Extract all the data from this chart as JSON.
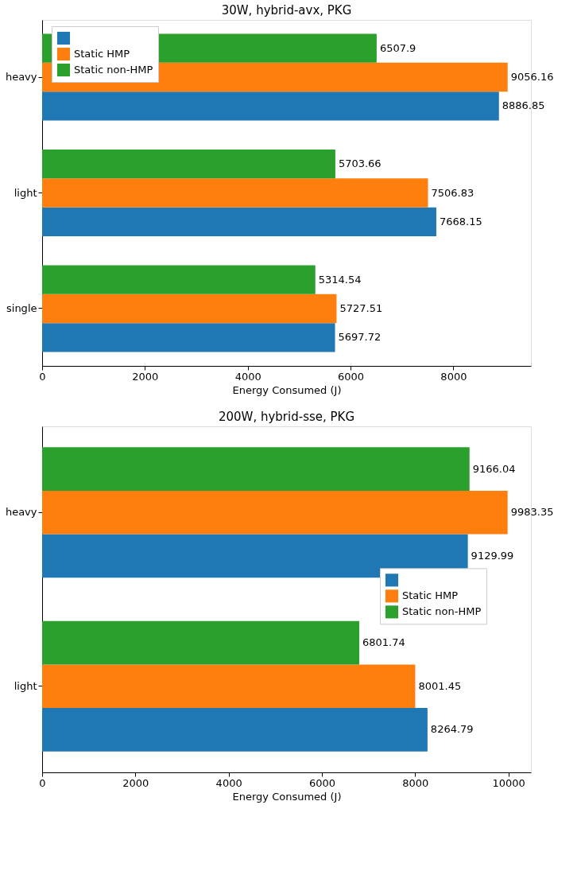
{
  "chart_data": [
    {
      "type": "bar",
      "orientation": "horizontal",
      "title": "30W, hybrid-avx, PKG",
      "xlabel": "Energy Consumed (J)",
      "categories": [
        "heavy",
        "light",
        "single"
      ],
      "series": [
        {
          "color": "#1f77b4",
          "values": [
            8886.85,
            7668.15,
            5697.72
          ]
        },
        {
          "name": "Static HMP",
          "color": "#ff7f0e",
          "values": [
            9056.16,
            7506.83,
            5727.51
          ]
        },
        {
          "name": "Static non-HMP",
          "color": "#2ca02c",
          "values": [
            6507.9,
            5703.66,
            5314.54
          ]
        }
      ],
      "xlim": [
        0,
        9509
      ],
      "xticks": [
        0,
        2000,
        4000,
        6000,
        8000
      ],
      "data_labels": true,
      "legend": "top left",
      "grid": false
    },
    {
      "type": "bar",
      "orientation": "horizontal",
      "title": "200W, hybrid-sse, PKG",
      "xlabel": "Energy Consumed (J)",
      "categories": [
        "heavy",
        "light"
      ],
      "series": [
        {
          "color": "#1f77b4",
          "values": [
            9129.99,
            8264.79
          ]
        },
        {
          "name": "Static HMP",
          "color": "#ff7f0e",
          "values": [
            9983.35,
            8001.45
          ]
        },
        {
          "name": "Static non-HMP",
          "color": "#2ca02c",
          "values": [
            9166.04,
            6801.74
          ]
        }
      ],
      "xlim": [
        0,
        10483
      ],
      "xticks": [
        0,
        2000,
        4000,
        6000,
        8000,
        10000
      ],
      "data_labels": true,
      "legend": "right",
      "grid": false
    }
  ]
}
